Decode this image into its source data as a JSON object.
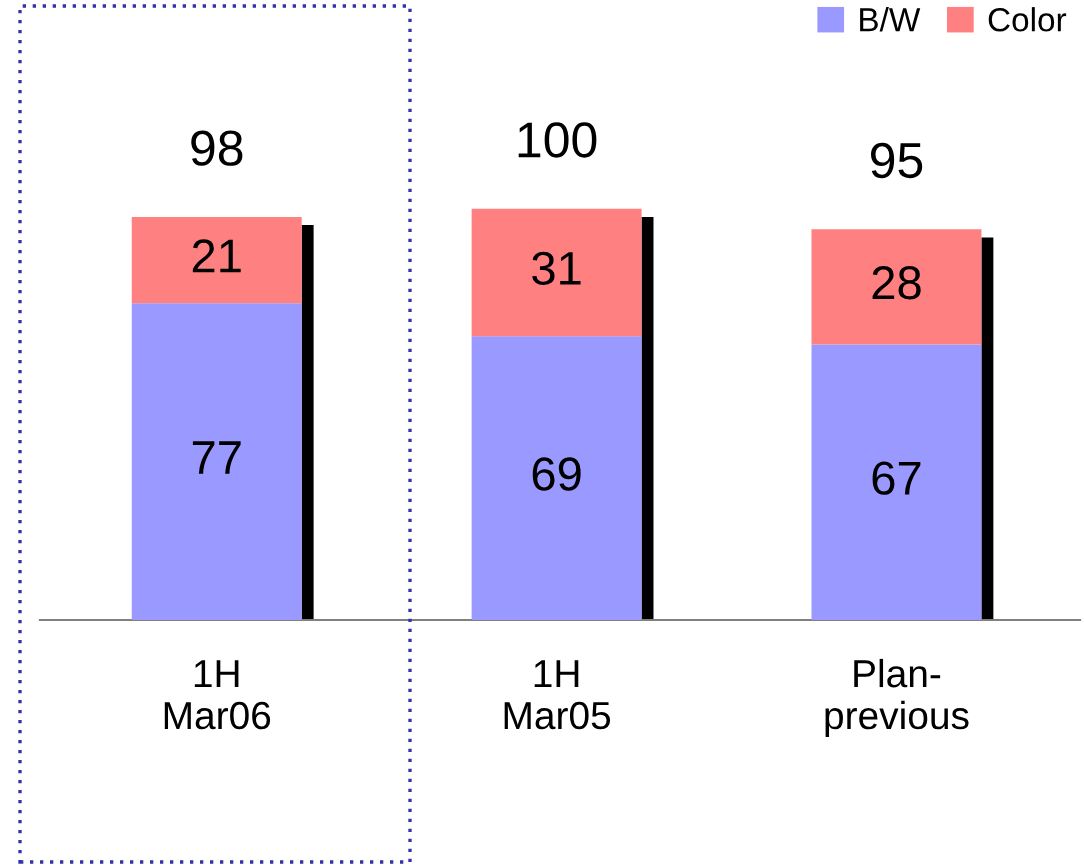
{
  "chart_data": {
    "type": "bar",
    "stacked": true,
    "categories": [
      "1H\nMar06",
      "1H\nMar05",
      "Plan-\nprevious"
    ],
    "series": [
      {
        "name": "B/W",
        "color": "#9999ff",
        "values": [
          77,
          69,
          67
        ]
      },
      {
        "name": "Color",
        "color": "#ff8080",
        "values": [
          21,
          31,
          28
        ]
      }
    ],
    "totals": [
      "98",
      "100",
      "95"
    ],
    "data_labels": true,
    "legend": "top right",
    "grid": false
  }
}
